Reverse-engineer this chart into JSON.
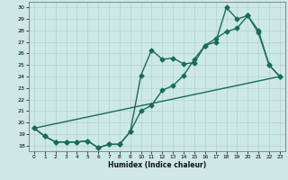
{
  "title": "",
  "xlabel": "Humidex (Indice chaleur)",
  "bg_color": "#cde8e5",
  "line_color": "#1a6b5a",
  "grid_color": "#afd4d0",
  "xlim": [
    -0.5,
    23.5
  ],
  "ylim": [
    17.5,
    30.5
  ],
  "yticks": [
    18,
    19,
    20,
    21,
    22,
    23,
    24,
    25,
    26,
    27,
    28,
    29,
    30
  ],
  "xticks": [
    0,
    1,
    2,
    3,
    4,
    5,
    6,
    7,
    8,
    9,
    10,
    11,
    12,
    13,
    14,
    15,
    16,
    17,
    18,
    19,
    20,
    21,
    22,
    23
  ],
  "line1_x": [
    0,
    1,
    2,
    3,
    4,
    5,
    6,
    7,
    8,
    9,
    10,
    11,
    12,
    13,
    14,
    15,
    16,
    17,
    18,
    19,
    20,
    21,
    22,
    23
  ],
  "line1_y": [
    19.5,
    18.8,
    18.3,
    18.3,
    18.3,
    18.4,
    17.8,
    18.1,
    18.1,
    19.2,
    21.0,
    21.5,
    22.8,
    23.2,
    24.1,
    25.5,
    26.7,
    27.3,
    27.9,
    28.2,
    29.3,
    27.8,
    25.0,
    24.0
  ],
  "line2_x": [
    0,
    1,
    2,
    3,
    4,
    5,
    6,
    7,
    8,
    9,
    10,
    11,
    12,
    13,
    14,
    15,
    16,
    17,
    18,
    19,
    20,
    21,
    22,
    23
  ],
  "line2_y": [
    19.5,
    18.8,
    18.3,
    18.3,
    18.3,
    18.4,
    17.8,
    18.1,
    18.1,
    19.2,
    24.1,
    26.3,
    25.5,
    25.6,
    25.1,
    25.2,
    26.7,
    27.0,
    30.0,
    29.0,
    29.3,
    28.0,
    25.0,
    24.0
  ],
  "line3_x": [
    0,
    23
  ],
  "line3_y": [
    19.5,
    24.0
  ],
  "markersize": 2.5,
  "linewidth": 1.0
}
